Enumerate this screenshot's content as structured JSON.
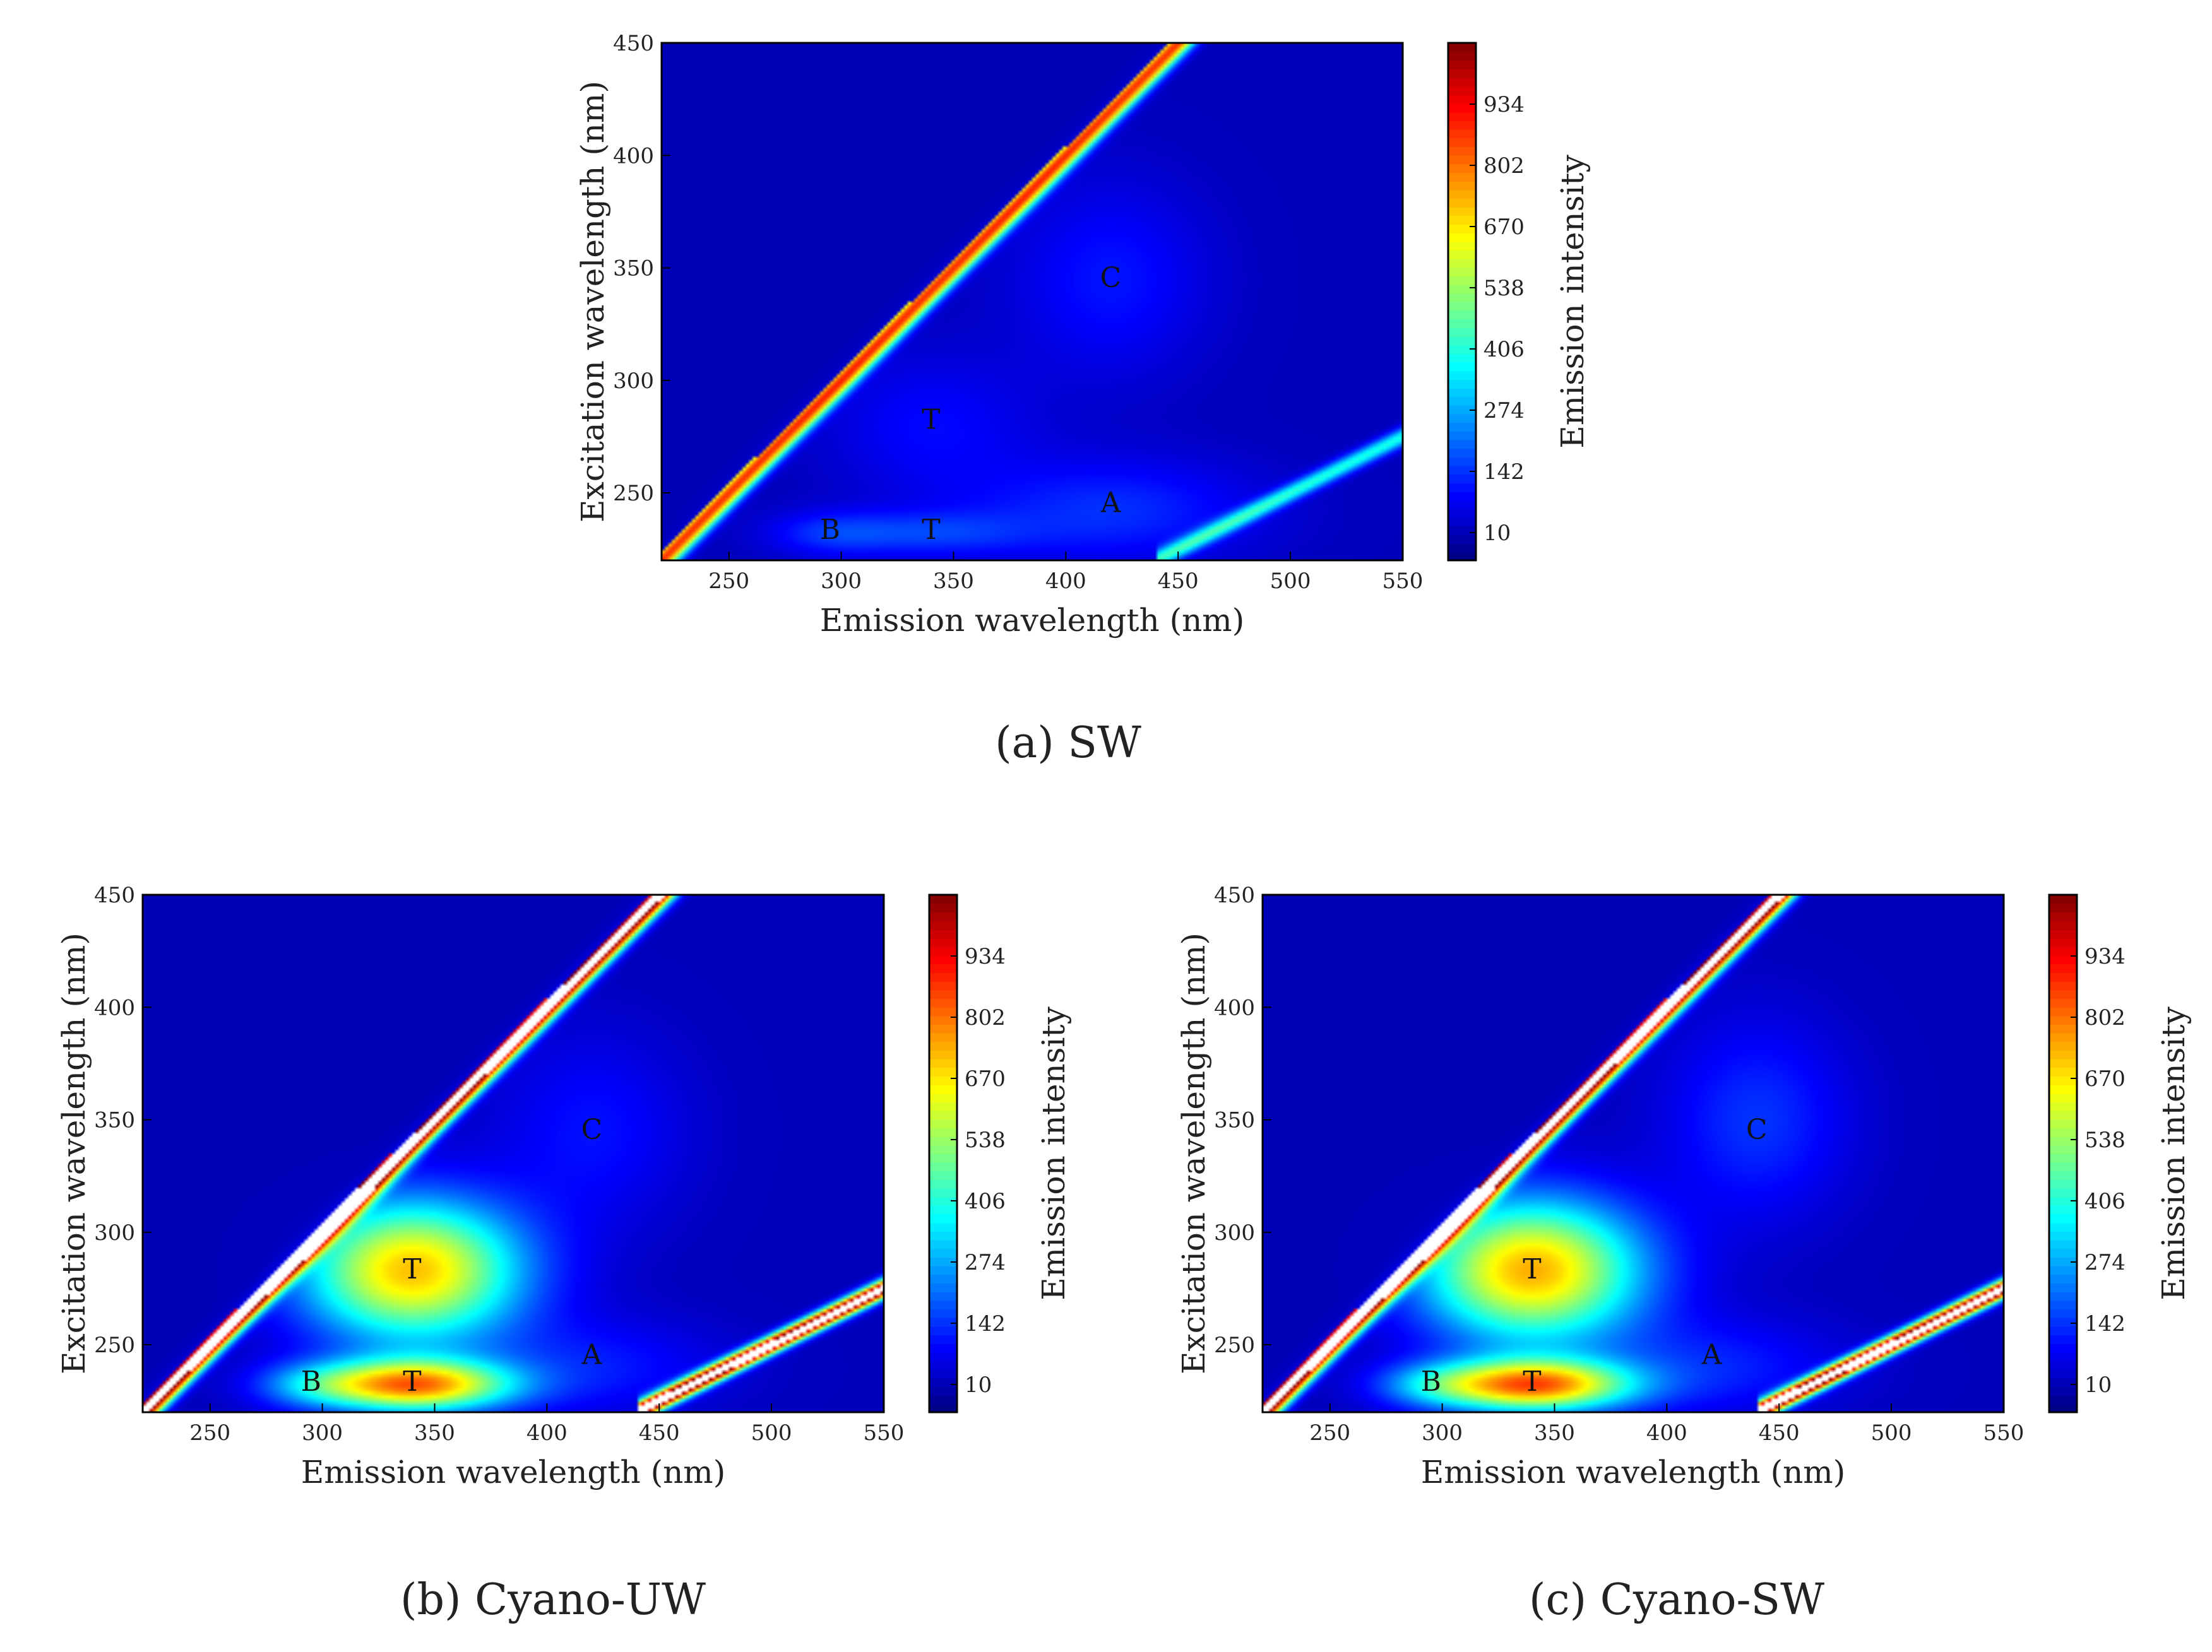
{
  "chart_data": [
    {
      "type": "heatmap",
      "panel": "a",
      "caption": "(a) SW",
      "xlabel": "Emission wavelength (nm)",
      "ylabel": "Excitation wavelength (nm)",
      "xlim": [
        220,
        550
      ],
      "ylim": [
        220,
        450
      ],
      "xticks": [
        250,
        300,
        350,
        400,
        450,
        500,
        550
      ],
      "yticks": [
        250,
        300,
        350,
        400,
        450
      ],
      "colorbar": {
        "label": "Emission intensity",
        "ticks": [
          10,
          142,
          274,
          406,
          538,
          670,
          802,
          934
        ],
        "range": [
          -50,
          1066
        ]
      },
      "scatter_peak": 860,
      "scatter2_peak": 380,
      "peaks": [
        {
          "name": "B",
          "em": 295,
          "ex": 232,
          "intensity": 110,
          "sx": 20,
          "sy": 7
        },
        {
          "name": "T",
          "em": 340,
          "ex": 232,
          "intensity": 120,
          "sx": 30,
          "sy": 7
        },
        {
          "name": "T",
          "em": 340,
          "ex": 280,
          "intensity": 80,
          "sx": 32,
          "sy": 22
        },
        {
          "name": "A",
          "em": 420,
          "ex": 242,
          "intensity": 125,
          "sx": 45,
          "sy": 16
        },
        {
          "name": "C",
          "em": 420,
          "ex": 345,
          "intensity": 95,
          "sx": 30,
          "sy": 30
        }
      ],
      "labels": [
        {
          "text": "B",
          "em": 295,
          "ex": 234
        },
        {
          "text": "T",
          "em": 340,
          "ex": 234
        },
        {
          "text": "T",
          "em": 340,
          "ex": 283
        },
        {
          "text": "A",
          "em": 420,
          "ex": 246
        },
        {
          "text": "C",
          "em": 420,
          "ex": 346
        }
      ]
    },
    {
      "type": "heatmap",
      "panel": "b",
      "caption": "(b) Cyano-UW",
      "xlabel": "Emission wavelength (nm)",
      "ylabel": "Excitation wavelength (nm)",
      "xlim": [
        220,
        550
      ],
      "ylim": [
        220,
        450
      ],
      "xticks": [
        250,
        300,
        350,
        400,
        450,
        500,
        550
      ],
      "yticks": [
        250,
        300,
        350,
        400,
        450
      ],
      "colorbar": {
        "label": "Emission intensity",
        "ticks": [
          10,
          142,
          274,
          406,
          538,
          670,
          802,
          934
        ],
        "range": [
          -50,
          1066
        ]
      },
      "scatter_peak": 1200,
      "scatter2_peak": 1200,
      "peaks": [
        {
          "name": "B",
          "em": 295,
          "ex": 232,
          "intensity": 160,
          "sx": 18,
          "sy": 7
        },
        {
          "name": "T",
          "em": 340,
          "ex": 232,
          "intensity": 760,
          "sx": 30,
          "sy": 8
        },
        {
          "name": "T",
          "em": 340,
          "ex": 283,
          "intensity": 700,
          "sx": 34,
          "sy": 22
        },
        {
          "name": "A",
          "em": 420,
          "ex": 240,
          "intensity": 100,
          "sx": 40,
          "sy": 15
        },
        {
          "name": "C",
          "em": 420,
          "ex": 345,
          "intensity": 90,
          "sx": 30,
          "sy": 30
        }
      ],
      "labels": [
        {
          "text": "B",
          "em": 295,
          "ex": 234
        },
        {
          "text": "T",
          "em": 340,
          "ex": 234
        },
        {
          "text": "T",
          "em": 340,
          "ex": 284
        },
        {
          "text": "A",
          "em": 420,
          "ex": 246
        },
        {
          "text": "C",
          "em": 420,
          "ex": 346
        }
      ]
    },
    {
      "type": "heatmap",
      "panel": "c",
      "caption": "(c) Cyano-SW",
      "xlabel": "Emission wavelength (nm)",
      "ylabel": "Excitation wavelength (nm)",
      "xlim": [
        220,
        550
      ],
      "ylim": [
        220,
        450
      ],
      "xticks": [
        250,
        300,
        350,
        400,
        450,
        500,
        550
      ],
      "yticks": [
        250,
        300,
        350,
        400,
        450
      ],
      "colorbar": {
        "label": "Emission intensity",
        "ticks": [
          10,
          142,
          274,
          406,
          538,
          670,
          802,
          934
        ],
        "range": [
          -50,
          1066
        ]
      },
      "scatter_peak": 1200,
      "scatter2_peak": 1200,
      "peaks": [
        {
          "name": "B",
          "em": 295,
          "ex": 232,
          "intensity": 170,
          "sx": 18,
          "sy": 7
        },
        {
          "name": "T",
          "em": 340,
          "ex": 232,
          "intensity": 780,
          "sx": 30,
          "sy": 8
        },
        {
          "name": "T",
          "em": 340,
          "ex": 283,
          "intensity": 720,
          "sx": 34,
          "sy": 22
        },
        {
          "name": "A",
          "em": 420,
          "ex": 240,
          "intensity": 110,
          "sx": 40,
          "sy": 15
        },
        {
          "name": "C",
          "em": 440,
          "ex": 350,
          "intensity": 130,
          "sx": 28,
          "sy": 30
        }
      ],
      "labels": [
        {
          "text": "B",
          "em": 295,
          "ex": 234
        },
        {
          "text": "T",
          "em": 340,
          "ex": 234
        },
        {
          "text": "T",
          "em": 340,
          "ex": 284
        },
        {
          "text": "A",
          "em": 420,
          "ex": 246
        },
        {
          "text": "C",
          "em": 440,
          "ex": 346
        }
      ]
    }
  ]
}
